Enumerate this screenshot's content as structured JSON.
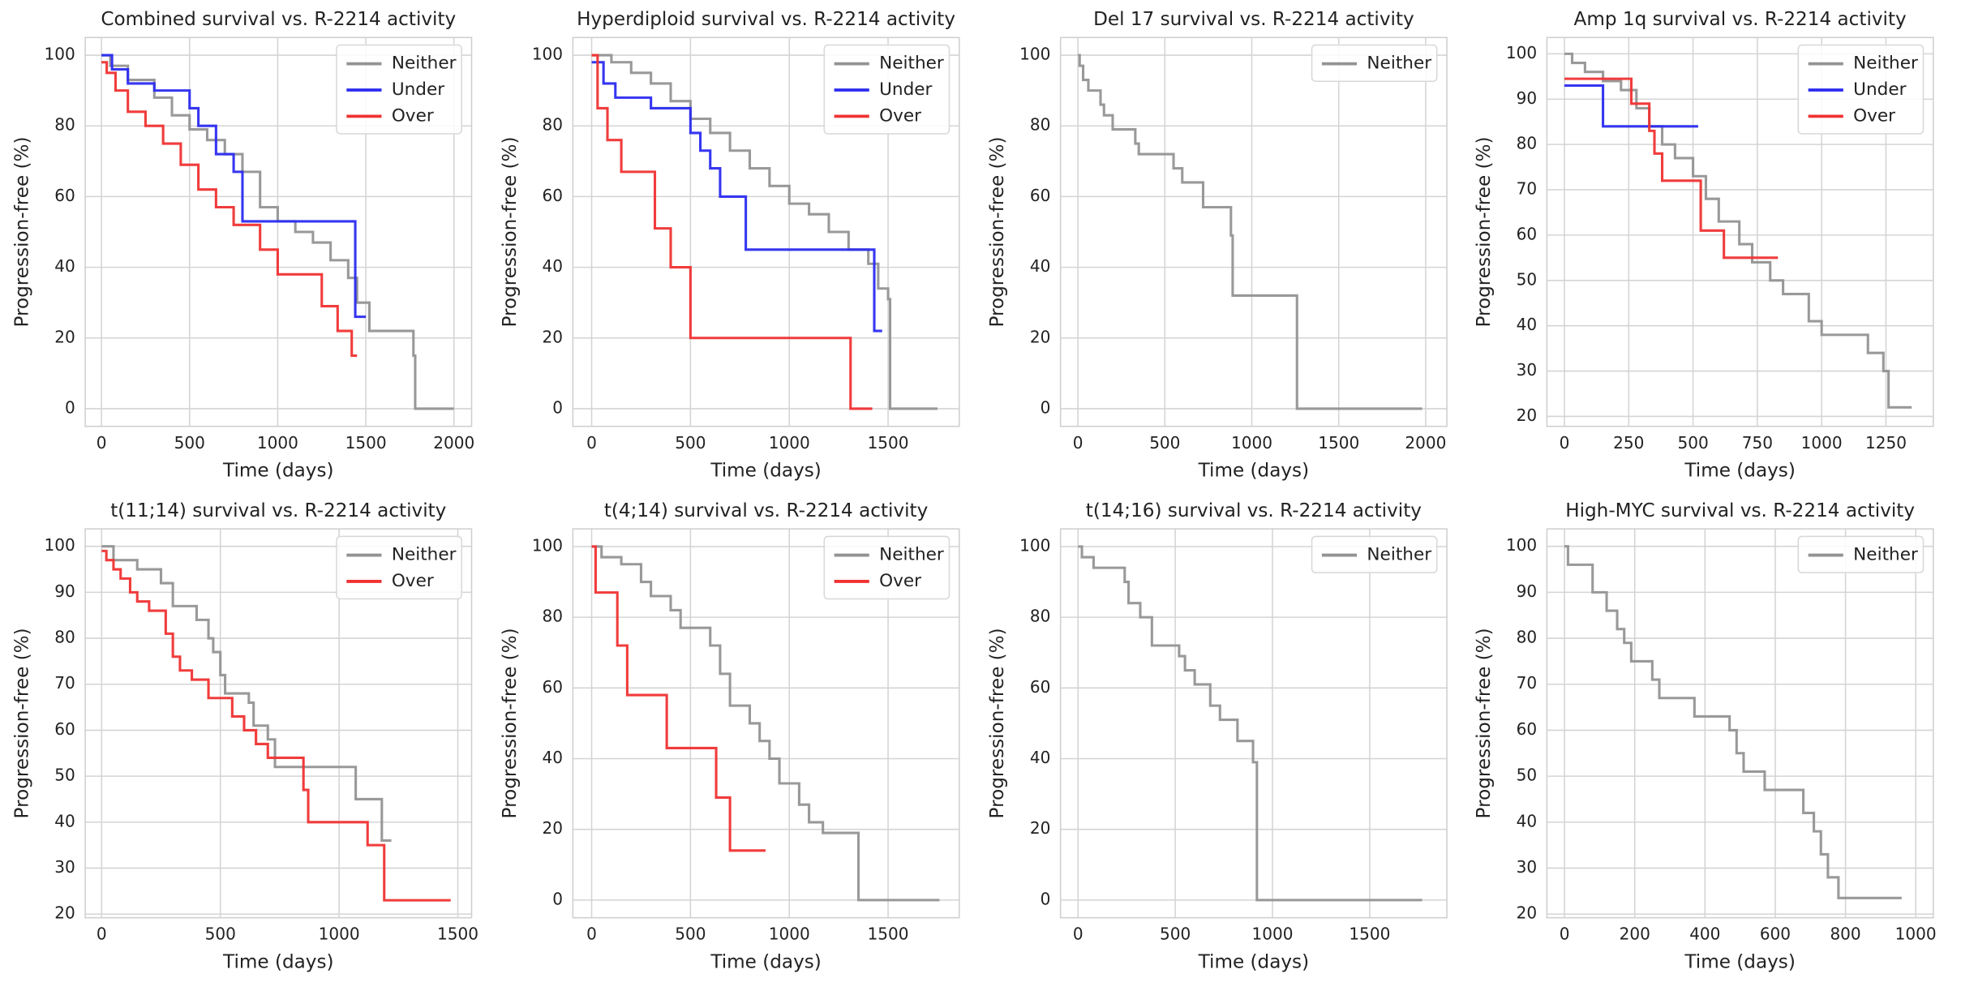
{
  "chart_data": [
    {
      "type": "line",
      "drawstyle": "steps-post",
      "title": "Combined survival vs. R-2214 activity",
      "xlabel": "Time (days)",
      "ylabel": "Progression-free (%)",
      "xlim": [
        -92,
        2100
      ],
      "ylim": [
        -5,
        105
      ],
      "xticks": [
        0,
        500,
        1000,
        1500,
        2000
      ],
      "yticks": [
        0,
        20,
        40,
        60,
        80,
        100
      ],
      "grid": true,
      "legend": "upper right",
      "series": [
        {
          "name": "Neither",
          "color": "#939393",
          "x": [
            0,
            50,
            150,
            300,
            400,
            500,
            600,
            700,
            800,
            900,
            1000,
            1100,
            1200,
            1300,
            1400,
            1450,
            1520,
            1770,
            1780,
            2000
          ],
          "values": [
            100,
            97,
            93,
            88,
            83,
            79,
            76,
            72,
            67,
            57,
            53,
            50,
            47,
            42,
            37,
            30,
            22,
            15,
            0,
            0
          ]
        },
        {
          "name": "Under",
          "color": "#2b2bf0",
          "x": [
            0,
            60,
            150,
            300,
            500,
            550,
            650,
            750,
            800,
            1430,
            1440,
            1500
          ],
          "values": [
            100,
            96,
            92,
            90,
            85,
            80,
            72,
            67,
            53,
            53,
            26,
            26
          ]
        },
        {
          "name": "Over",
          "color": "#f03232",
          "x": [
            0,
            30,
            80,
            150,
            250,
            350,
            450,
            550,
            650,
            750,
            900,
            1000,
            1150,
            1250,
            1300,
            1340,
            1420,
            1450
          ],
          "values": [
            98,
            95,
            90,
            84,
            80,
            75,
            69,
            62,
            57,
            52,
            45,
            38,
            38,
            29,
            29,
            22,
            15,
            15
          ]
        }
      ]
    },
    {
      "type": "line",
      "drawstyle": "steps-post",
      "title": "Hyperdiploid survival vs. R-2214 activity",
      "xlabel": "Time (days)",
      "ylabel": "Progression-free (%)",
      "xlim": [
        -95,
        1860
      ],
      "ylim": [
        -5,
        105
      ],
      "xticks": [
        0,
        500,
        1000,
        1500
      ],
      "yticks": [
        0,
        20,
        40,
        60,
        80,
        100
      ],
      "grid": true,
      "legend": "upper right",
      "series": [
        {
          "name": "Neither",
          "color": "#939393",
          "x": [
            0,
            100,
            200,
            300,
            400,
            500,
            600,
            700,
            800,
            900,
            1000,
            1100,
            1200,
            1300,
            1400,
            1450,
            1500,
            1510,
            1750
          ],
          "values": [
            100,
            98,
            95,
            92,
            87,
            82,
            78,
            73,
            68,
            63,
            58,
            55,
            50,
            45,
            41,
            34,
            31,
            0,
            0
          ]
        },
        {
          "name": "Under",
          "color": "#2b2bf0",
          "x": [
            0,
            60,
            120,
            300,
            500,
            550,
            600,
            650,
            780,
            1420,
            1430,
            1470
          ],
          "values": [
            98,
            92,
            88,
            85,
            78,
            73,
            68,
            60,
            45,
            45,
            22,
            22
          ]
        },
        {
          "name": "Over",
          "color": "#f03232",
          "x": [
            0,
            30,
            80,
            150,
            320,
            400,
            500,
            1300,
            1310,
            1420
          ],
          "values": [
            100,
            85,
            76,
            67,
            51,
            40,
            20,
            20,
            0,
            0
          ]
        }
      ]
    },
    {
      "type": "line",
      "drawstyle": "steps-post",
      "title": "Del 17 survival vs. R-2214 activity",
      "xlabel": "Time (days)",
      "ylabel": "Progression-free (%)",
      "xlim": [
        -100,
        2122
      ],
      "ylim": [
        -5,
        105
      ],
      "xticks": [
        0,
        500,
        1000,
        1500,
        2000
      ],
      "yticks": [
        0,
        20,
        40,
        60,
        80,
        100
      ],
      "grid": true,
      "legend": "upper right",
      "series": [
        {
          "name": "Neither",
          "color": "#939393",
          "x": [
            0,
            10,
            30,
            60,
            130,
            150,
            200,
            330,
            350,
            550,
            600,
            720,
            880,
            890,
            1250,
            1260,
            1980
          ],
          "values": [
            100,
            97,
            93,
            90,
            86,
            83,
            79,
            75,
            72,
            68,
            64,
            57,
            49,
            32,
            32,
            0,
            0
          ]
        }
      ]
    },
    {
      "type": "line",
      "drawstyle": "steps-post",
      "title": "Amp 1q survival vs. R-2214 activity",
      "xlabel": "Time (days)",
      "ylabel": "Progression-free (%)",
      "xlim": [
        -68,
        1434
      ],
      "ylim": [
        17.8,
        103.6
      ],
      "xticks": [
        0,
        250,
        500,
        750,
        1000,
        1250
      ],
      "yticks": [
        20,
        30,
        40,
        50,
        60,
        70,
        80,
        90,
        100
      ],
      "grid": true,
      "legend": "upper right",
      "series": [
        {
          "name": "Neither",
          "color": "#939393",
          "x": [
            0,
            30,
            80,
            150,
            220,
            280,
            330,
            380,
            430,
            500,
            550,
            600,
            680,
            730,
            800,
            850,
            950,
            1000,
            1180,
            1240,
            1260,
            1350
          ],
          "values": [
            100,
            98,
            96,
            94,
            92,
            88,
            84,
            80,
            77,
            73,
            68,
            63,
            58,
            54,
            50,
            47,
            41,
            38,
            34,
            30,
            22,
            22
          ]
        },
        {
          "name": "Under",
          "color": "#2b2bf0",
          "x": [
            0,
            150,
            520
          ],
          "values": [
            93,
            84,
            84
          ]
        },
        {
          "name": "Over",
          "color": "#f03232",
          "x": [
            0,
            260,
            330,
            350,
            380,
            500,
            530,
            620,
            830
          ],
          "values": [
            94.5,
            89,
            83,
            78,
            72,
            72,
            61,
            55,
            55
          ]
        }
      ]
    },
    {
      "type": "line",
      "drawstyle": "steps-post",
      "title": "t(11;14) survival vs. R-2214 activity",
      "xlabel": "Time (days)",
      "ylabel": "Progression-free (%)",
      "xlim": [
        -69,
        1558
      ],
      "ylim": [
        19.2,
        103.8
      ],
      "xticks": [
        0,
        500,
        1000,
        1500
      ],
      "yticks": [
        20,
        30,
        40,
        50,
        60,
        70,
        80,
        90,
        100
      ],
      "grid": true,
      "legend": "upper right",
      "series": [
        {
          "name": "Neither",
          "color": "#939393",
          "x": [
            0,
            50,
            150,
            250,
            300,
            400,
            450,
            470,
            500,
            520,
            620,
            640,
            700,
            730,
            1070,
            1180,
            1220
          ],
          "values": [
            100,
            97,
            95,
            92,
            87,
            84,
            80,
            77,
            72,
            68,
            66,
            61,
            58,
            52,
            45,
            36,
            36
          ]
        },
        {
          "name": "Over",
          "color": "#f03232",
          "x": [
            0,
            20,
            50,
            80,
            120,
            150,
            200,
            270,
            300,
            330,
            380,
            450,
            550,
            600,
            650,
            700,
            850,
            870,
            1100,
            1120,
            1190,
            1470
          ],
          "values": [
            99,
            97,
            95,
            93,
            90,
            88,
            86,
            81,
            76,
            73,
            71,
            67,
            63,
            60,
            57,
            54,
            47,
            40,
            40,
            35,
            23,
            23
          ]
        }
      ]
    },
    {
      "type": "line",
      "drawstyle": "steps-post",
      "title": "t(4;14) survival vs. R-2214 activity",
      "xlabel": "Time (days)",
      "ylabel": "Progression-free (%)",
      "xlim": [
        -95,
        1860
      ],
      "ylim": [
        -5,
        105
      ],
      "xticks": [
        0,
        500,
        1000,
        1500
      ],
      "yticks": [
        0,
        20,
        40,
        60,
        80,
        100
      ],
      "grid": true,
      "legend": "upper right",
      "series": [
        {
          "name": "Neither",
          "color": "#939393",
          "x": [
            0,
            50,
            150,
            250,
            300,
            400,
            450,
            600,
            650,
            700,
            800,
            850,
            900,
            950,
            1050,
            1100,
            1170,
            1350,
            1760
          ],
          "values": [
            100,
            97,
            95,
            90,
            86,
            82,
            77,
            72,
            64,
            55,
            50,
            45,
            40,
            33,
            27,
            22,
            19,
            0,
            0
          ]
        },
        {
          "name": "Over",
          "color": "#f03232",
          "x": [
            0,
            20,
            130,
            180,
            380,
            630,
            700,
            880
          ],
          "values": [
            100,
            87,
            72,
            58,
            43,
            29,
            14,
            14
          ]
        }
      ]
    },
    {
      "type": "line",
      "drawstyle": "steps-post",
      "title": "t(14;16) survival vs. R-2214 activity",
      "xlabel": "Time (days)",
      "ylabel": "Progression-free (%)",
      "xlim": [
        -90,
        1897
      ],
      "ylim": [
        -5,
        105
      ],
      "xticks": [
        0,
        500,
        1000,
        1500
      ],
      "yticks": [
        0,
        20,
        40,
        60,
        80,
        100
      ],
      "grid": true,
      "legend": "upper right",
      "series": [
        {
          "name": "Neither",
          "color": "#939393",
          "x": [
            0,
            20,
            80,
            240,
            260,
            320,
            380,
            520,
            550,
            600,
            680,
            730,
            820,
            900,
            920,
            1770
          ],
          "values": [
            100,
            97,
            94,
            90,
            84,
            80,
            72,
            69,
            65,
            61,
            55,
            51,
            45,
            39,
            0,
            0
          ]
        }
      ]
    },
    {
      "type": "line",
      "drawstyle": "steps-post",
      "title": "High-MYC survival vs. R-2214 activity",
      "xlabel": "Time (days)",
      "ylabel": "Progression-free (%)",
      "xlim": [
        -50,
        1050
      ],
      "ylim": [
        19.2,
        103.8
      ],
      "xticks": [
        0,
        200,
        400,
        600,
        800,
        1000
      ],
      "yticks": [
        20,
        30,
        40,
        50,
        60,
        70,
        80,
        90,
        100
      ],
      "grid": true,
      "legend": "upper right",
      "series": [
        {
          "name": "Neither",
          "color": "#939393",
          "x": [
            0,
            10,
            80,
            120,
            150,
            170,
            190,
            250,
            270,
            370,
            470,
            490,
            510,
            570,
            680,
            710,
            730,
            750,
            780,
            960
          ],
          "values": [
            100,
            96,
            90,
            86,
            82,
            79,
            75,
            71,
            67,
            63,
            60,
            55,
            51,
            47,
            42,
            38,
            33,
            28,
            23.5,
            23.5
          ]
        }
      ]
    }
  ]
}
